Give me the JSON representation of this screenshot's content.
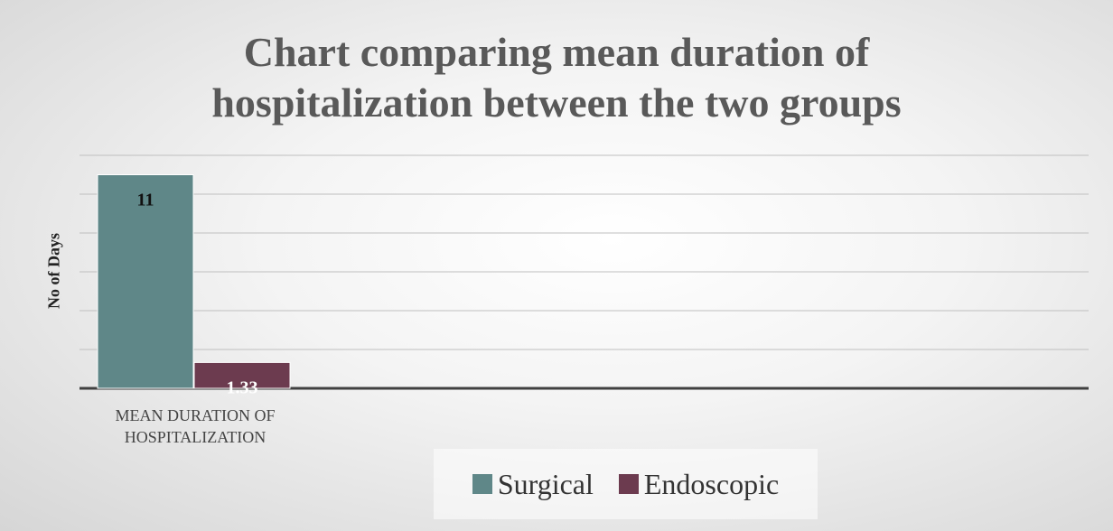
{
  "chart_data": {
    "type": "bar",
    "title": "Chart comparing mean duration of hospitalization between the two groups",
    "ylabel": "No of Days",
    "categories": [
      "MEAN DURATION OF HOSPITALIZATION"
    ],
    "series": [
      {
        "name": "Surgical",
        "color": "#5f8788",
        "values": [
          11
        ]
      },
      {
        "name": "Endoscopic",
        "color": "#6c3b4f",
        "values": [
          1.33
        ]
      }
    ],
    "ylim": [
      0,
      12
    ],
    "yticks": [
      0,
      2,
      4,
      6,
      8,
      10,
      12
    ],
    "grid": true,
    "legend": "bottom"
  }
}
